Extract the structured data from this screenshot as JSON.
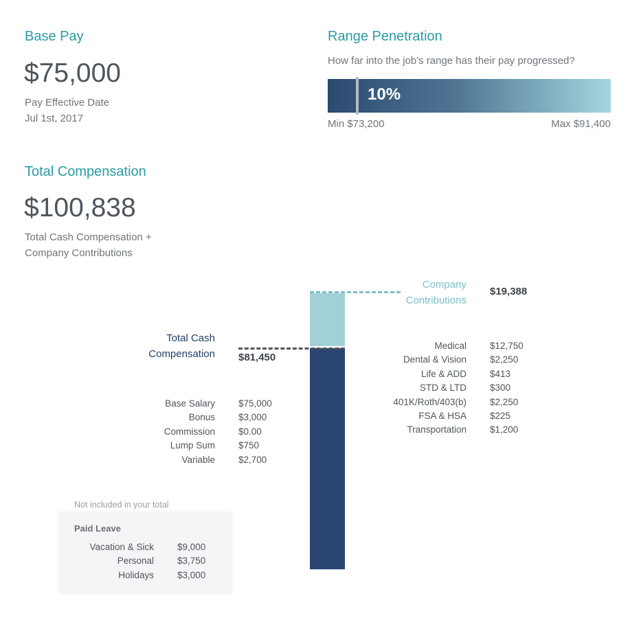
{
  "base_pay": {
    "title": "Base Pay",
    "amount": "$75,000",
    "effective_label": "Pay Effective Date",
    "effective_date": "Jul 1st, 2017"
  },
  "range": {
    "title": "Range Penetration",
    "question": "How far into the job's range has their pay progressed?",
    "percent_label": "10%",
    "percent": 0.1,
    "min": "Min $73,200",
    "max": "Max $91,400",
    "colors": {
      "start": "#2b4a70",
      "end": "#a5d6df"
    }
  },
  "total": {
    "title": "Total Compensation",
    "amount": "$100,838",
    "desc1": "Total Cash Compensation +",
    "desc2": "Company Contributions"
  },
  "cash": {
    "label1": "Total Cash",
    "label2": "Compensation",
    "total": "$81,450",
    "color": "#2a4570",
    "items": [
      {
        "label": "Base Salary",
        "value": "$75,000"
      },
      {
        "label": "Bonus",
        "value": "$3,000"
      },
      {
        "label": "Commission",
        "value": "$0.00"
      },
      {
        "label": "Lump Sum",
        "value": "$750"
      },
      {
        "label": "Variable",
        "value": "$2,700"
      }
    ]
  },
  "contrib": {
    "label1": "Company",
    "label2": "Contributions",
    "total": "$19,388",
    "color": "#a1d0d8",
    "items": [
      {
        "label": "Medical",
        "value": "$12,750"
      },
      {
        "label": "Dental & Vision",
        "value": "$2,250"
      },
      {
        "label": "Life & ADD",
        "value": "$413"
      },
      {
        "label": "STD & LTD",
        "value": "$300"
      },
      {
        "label": "401K/Roth/403(b)",
        "value": "$2,250"
      },
      {
        "label": "FSA & HSA",
        "value": "$225"
      },
      {
        "label": "Transportation",
        "value": "$1,200"
      }
    ]
  },
  "paid_leave": {
    "note": "Not included in your total",
    "title": "Paid Leave",
    "items": [
      {
        "label": "Vacation & Sick",
        "value": "$9,000"
      },
      {
        "label": "Personal",
        "value": "$3,750"
      },
      {
        "label": "Holidays",
        "value": "$3,000"
      }
    ]
  }
}
